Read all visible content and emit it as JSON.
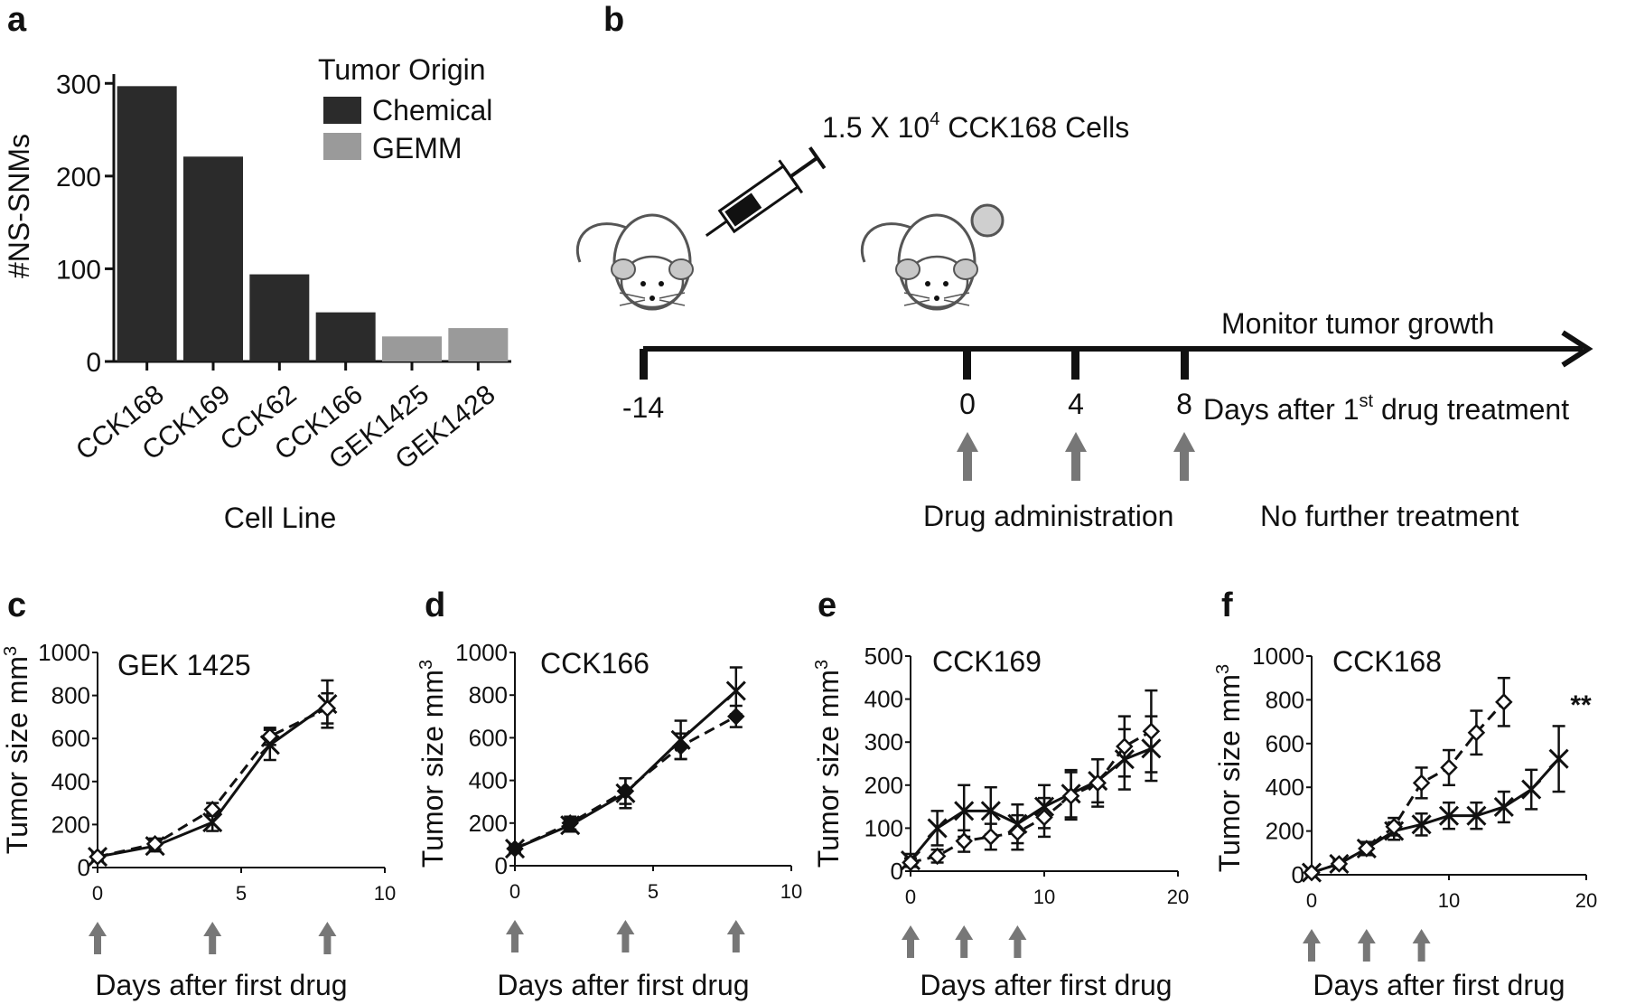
{
  "colors": {
    "chemical": "#2b2b2b",
    "gemm": "#9a9a9a",
    "axis": "#111111",
    "arrow": "#777777"
  },
  "panels": {
    "a": {
      "letter": "a"
    },
    "b": {
      "letter": "b"
    },
    "c": {
      "letter": "c"
    },
    "d": {
      "letter": "d"
    },
    "e": {
      "letter": "e"
    },
    "f": {
      "letter": "f"
    }
  },
  "diagram": {
    "cells_label": "1.5 X 10",
    "cells_exp": "4",
    "cells_suffix": " CCK168 Cells",
    "monitor_label": "Monitor tumor growth",
    "days_label_prefix": "Days after 1",
    "days_label_sup": "st",
    "days_label_suffix": " drug treatment",
    "drug_label": "Drug administration",
    "no_treatment_label": "No further treatment",
    "timeline_ticks": [
      "-14",
      "0",
      "4",
      "8"
    ],
    "icons": [
      "syringe-icon",
      "mouse-icon",
      "mouse-with-tumor-icon",
      "arrow-up-icon"
    ]
  },
  "chart_data": [
    {
      "id": "a",
      "type": "bar",
      "title": "",
      "xlabel": "Cell Line",
      "ylabel": "#NS-SNMs",
      "ylim": [
        0,
        310
      ],
      "yticks": [
        0,
        100,
        200,
        300
      ],
      "categories": [
        "CCK168",
        "CCK169",
        "CCK62",
        "CCK166",
        "GEK1425",
        "GEK1428"
      ],
      "values": [
        297,
        221,
        94,
        53,
        27,
        36
      ],
      "groups": [
        "Chemical",
        "Chemical",
        "Chemical",
        "Chemical",
        "GEMM",
        "GEMM"
      ],
      "legend": {
        "title": "Tumor Origin",
        "entries": [
          "Chemical",
          "GEMM"
        ],
        "placement": "top-right"
      }
    },
    {
      "id": "c",
      "type": "line",
      "title": "GEK 1425",
      "xlabel": "Days after first drug",
      "ylabel": "Tumor size mm",
      "ylabel_sup": "3",
      "xlim": [
        0,
        10
      ],
      "ylim": [
        0,
        1000
      ],
      "xticks": [
        0,
        5,
        10
      ],
      "yticks": [
        0,
        200,
        400,
        600,
        800,
        1000
      ],
      "dose_days": [
        0,
        4,
        8
      ],
      "series": [
        {
          "style": "solid",
          "marker": "x",
          "x": [
            0,
            2,
            4,
            6,
            8
          ],
          "y": [
            50,
            100,
            210,
            570,
            760
          ],
          "err": [
            20,
            25,
            40,
            70,
            110
          ]
        },
        {
          "style": "dashed",
          "marker": "diamond-open",
          "x": [
            0,
            2,
            4,
            6,
            8
          ],
          "y": [
            50,
            110,
            270,
            610,
            740
          ],
          "err": [
            20,
            25,
            30,
            40,
            70
          ]
        }
      ]
    },
    {
      "id": "d",
      "type": "line",
      "title": "CCK166",
      "xlabel": "Days after first drug",
      "ylabel": "Tumor size mm",
      "ylabel_sup": "3",
      "xlim": [
        0,
        10
      ],
      "ylim": [
        0,
        1000
      ],
      "xticks": [
        0,
        5,
        10
      ],
      "yticks": [
        0,
        200,
        400,
        600,
        800,
        1000
      ],
      "dose_days": [
        0,
        4,
        8
      ],
      "series": [
        {
          "style": "solid",
          "marker": "x",
          "x": [
            0,
            2,
            4,
            6,
            8
          ],
          "y": [
            80,
            190,
            340,
            590,
            820
          ],
          "err": [
            20,
            30,
            70,
            90,
            110
          ]
        },
        {
          "style": "dashed",
          "marker": "diamond-filled",
          "x": [
            0,
            2,
            4,
            6,
            8
          ],
          "y": [
            80,
            200,
            350,
            560,
            700
          ],
          "err": [
            20,
            30,
            60,
            60,
            50
          ]
        }
      ]
    },
    {
      "id": "e",
      "type": "line",
      "title": "CCK169",
      "xlabel": "Days after first drug",
      "ylabel": "Tumor size mm",
      "ylabel_sup": "3",
      "xlim": [
        0,
        20
      ],
      "ylim": [
        0,
        500
      ],
      "xticks": [
        0,
        10,
        20
      ],
      "yticks": [
        0,
        100,
        200,
        300,
        400,
        500
      ],
      "dose_days": [
        0,
        4,
        8
      ],
      "series": [
        {
          "style": "solid",
          "marker": "x",
          "x": [
            0,
            2,
            4,
            6,
            8,
            10,
            12,
            14,
            16,
            18
          ],
          "y": [
            25,
            100,
            140,
            140,
            110,
            150,
            180,
            210,
            260,
            285
          ],
          "err": [
            15,
            40,
            60,
            55,
            45,
            50,
            55,
            50,
            70,
            75
          ]
        },
        {
          "style": "dashed",
          "marker": "diamond-open",
          "x": [
            0,
            2,
            4,
            6,
            8,
            10,
            12,
            14,
            16,
            18
          ],
          "y": [
            20,
            35,
            70,
            80,
            90,
            125,
            175,
            205,
            290,
            325
          ],
          "err": [
            10,
            15,
            25,
            30,
            40,
            45,
            55,
            55,
            70,
            95
          ]
        }
      ]
    },
    {
      "id": "f",
      "type": "line",
      "title": "CCK168",
      "xlabel": "Days after first drug",
      "ylabel": "Tumor size mm",
      "ylabel_sup": "3",
      "xlim": [
        0,
        20
      ],
      "ylim": [
        0,
        1000
      ],
      "xticks": [
        0,
        10,
        20
      ],
      "yticks": [
        0,
        200,
        400,
        600,
        800,
        1000
      ],
      "dose_days": [
        0,
        4,
        8
      ],
      "annotation": "**",
      "series": [
        {
          "style": "solid",
          "marker": "x",
          "x": [
            0,
            2,
            4,
            6,
            8,
            10,
            12,
            14,
            16,
            18
          ],
          "y": [
            10,
            50,
            120,
            200,
            230,
            270,
            270,
            310,
            390,
            530
          ],
          "err": [
            10,
            15,
            30,
            40,
            50,
            60,
            60,
            70,
            90,
            150
          ]
        },
        {
          "style": "dashed",
          "marker": "diamond-open",
          "x": [
            0,
            2,
            4,
            6,
            8,
            10,
            12,
            14
          ],
          "y": [
            10,
            50,
            120,
            220,
            420,
            490,
            650,
            790
          ],
          "err": [
            10,
            15,
            30,
            40,
            70,
            80,
            100,
            110
          ]
        }
      ]
    }
  ]
}
